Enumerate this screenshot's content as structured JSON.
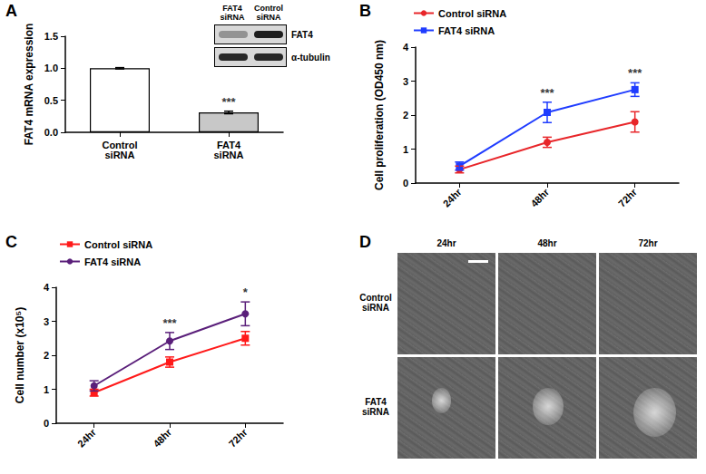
{
  "chart_data": [
    {
      "panel": "A",
      "type": "bar",
      "y_label": "FAT4 mRNA expression",
      "categories": [
        "Control siRNA",
        "FAT4 siRNA"
      ],
      "values": [
        1.0,
        0.31
      ],
      "errors": [
        0.01,
        0.02
      ],
      "colors": [
        "#ffffff",
        "#c8c8c8"
      ],
      "ylim": [
        0,
        1.5
      ],
      "yticks": [
        {
          "value": 0,
          "label": "0.0"
        },
        {
          "value": 0.5,
          "label": "0.5"
        },
        {
          "value": 1,
          "label": "1.0"
        },
        {
          "value": 1.5,
          "label": "1.5"
        }
      ],
      "significance": [
        {
          "category": "FAT4 siRNA",
          "label": "***"
        }
      ],
      "inset": {
        "lanes": [
          "FAT4 siRNA",
          "Control siRNA"
        ],
        "bands": [
          "FAT4",
          "α-tubulin"
        ]
      }
    },
    {
      "panel": "B",
      "type": "line",
      "y_label": "Cell proliferation (OD450 nm)",
      "categories": [
        "24hr",
        "48hr",
        "72hr"
      ],
      "series": [
        {
          "name": "Control siRNA",
          "color": "#e8262a",
          "marker": "circle",
          "values": [
            0.4,
            1.2,
            1.8
          ],
          "errors": [
            0.1,
            0.15,
            0.3
          ]
        },
        {
          "name": "FAT4 siRNA",
          "color": "#1f3cff",
          "marker": "square",
          "values": [
            0.5,
            2.08,
            2.75
          ],
          "errors": [
            0.12,
            0.3,
            0.2
          ]
        }
      ],
      "ylim": [
        0,
        4
      ],
      "yticks": [
        0,
        1,
        2,
        3,
        4
      ],
      "legend": "top-left",
      "significance": [
        {
          "category": "48hr",
          "label": "***"
        },
        {
          "category": "72hr",
          "label": "***"
        }
      ]
    },
    {
      "panel": "C",
      "type": "line",
      "y_label": "Cell number (x10⁵)",
      "categories": [
        "24hr",
        "48hr",
        "72hr"
      ],
      "series": [
        {
          "name": "Control siRNA",
          "color": "#ff1a1a",
          "marker": "square",
          "values": [
            0.9,
            1.8,
            2.5
          ],
          "errors": [
            0.1,
            0.15,
            0.2
          ]
        },
        {
          "name": "FAT4 siRNA",
          "color": "#5a1f7a",
          "marker": "circle",
          "values": [
            1.1,
            2.42,
            3.22
          ],
          "errors": [
            0.15,
            0.25,
            0.35
          ]
        }
      ],
      "ylim": [
        0,
        4
      ],
      "yticks": [
        0,
        1,
        2,
        3,
        4
      ],
      "legend": "top-left",
      "significance": [
        {
          "category": "48hr",
          "label": "***"
        },
        {
          "category": "72hr",
          "label": "*"
        }
      ]
    },
    {
      "panel": "D",
      "type": "image_grid",
      "columns": [
        "24hr",
        "48hr",
        "72hr"
      ],
      "rows": [
        "Control siRNA",
        "FAT4 siRNA"
      ]
    }
  ]
}
